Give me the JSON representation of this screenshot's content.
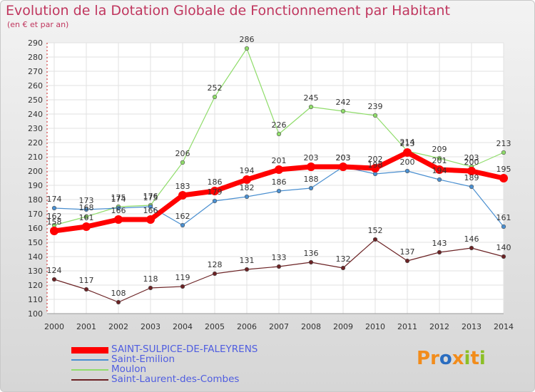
{
  "title": "Evolution de la Dotation Globale de Fonctionnement par Habitant",
  "subtitle": "(en € et par an)",
  "logo": {
    "letters": [
      "P",
      "r",
      "o",
      "x",
      "i",
      "t",
      "i"
    ],
    "colors": [
      "#f28c1b",
      "#f28c1b",
      "#2a6dc0",
      "#f28c1b",
      "#8cbf26",
      "#f28c1b",
      "#8cbf26"
    ]
  },
  "chart_data": {
    "type": "line",
    "x": [
      2000,
      2001,
      2002,
      2003,
      2004,
      2005,
      2006,
      2007,
      2008,
      2009,
      2010,
      2011,
      2012,
      2013,
      2014
    ],
    "ylim": [
      100,
      290
    ],
    "yticks": [
      100,
      110,
      120,
      130,
      140,
      150,
      160,
      170,
      180,
      190,
      200,
      210,
      220,
      230,
      240,
      250,
      260,
      270,
      280,
      290
    ],
    "grid": true,
    "legend_position": "bottom-left",
    "series": [
      {
        "name": "Saint-Laurent-des-Combes",
        "color": "#6b2224",
        "width": 1.2,
        "marker": 2.8,
        "values": [
          124,
          117,
          108,
          118,
          119,
          128,
          131,
          133,
          136,
          132,
          152,
          137,
          143,
          146,
          140
        ]
      },
      {
        "name": "Moulon",
        "color": "#8fdc6a",
        "width": 1.2,
        "marker": 2.8,
        "values": [
          162,
          168,
          175,
          176,
          206,
          252,
          286,
          226,
          245,
          242,
          239,
          214,
          209,
          203,
          213
        ]
      },
      {
        "name": "Saint-Emilion",
        "color": "#4a8fd0",
        "width": 1.2,
        "marker": 2.8,
        "values": [
          174,
          173,
          174,
          175,
          162,
          179,
          182,
          186,
          188,
          203,
          198,
          200,
          194,
          189,
          161
        ]
      },
      {
        "name": "SAINT-SULPICE-DE-FALEYRENS",
        "color": "#ff0000",
        "width": 7,
        "marker": 6,
        "values": [
          158,
          161,
          166,
          166,
          183,
          186,
          194,
          201,
          203,
          203,
          202,
          213,
          201,
          200,
          195
        ]
      }
    ],
    "value_labels": [
      [
        174,
        173,
        175,
        176,
        206,
        252,
        286,
        226,
        245,
        242,
        239,
        213,
        209,
        203,
        213
      ],
      [
        162,
        168,
        174,
        175,
        162,
        179,
        182,
        186,
        188,
        203,
        198,
        214,
        201,
        200,
        161
      ],
      [
        158,
        161,
        166,
        166,
        183,
        186,
        194,
        201,
        203,
        203,
        202,
        200,
        194,
        189,
        195
      ],
      [
        124,
        117,
        108,
        118,
        119,
        128,
        131,
        133,
        136,
        132,
        152,
        137,
        143,
        146,
        140
      ]
    ]
  },
  "legend": [
    {
      "label": "SAINT-SULPICE-DE-FALEYRENS",
      "color": "#ff0000",
      "thickness": 9
    },
    {
      "label": "Saint-Emilion",
      "color": "#4a8fd0",
      "thickness": 2
    },
    {
      "label": "Moulon",
      "color": "#8fdc6a",
      "thickness": 2
    },
    {
      "label": "Saint-Laurent-des-Combes",
      "color": "#6b2224",
      "thickness": 2
    }
  ]
}
